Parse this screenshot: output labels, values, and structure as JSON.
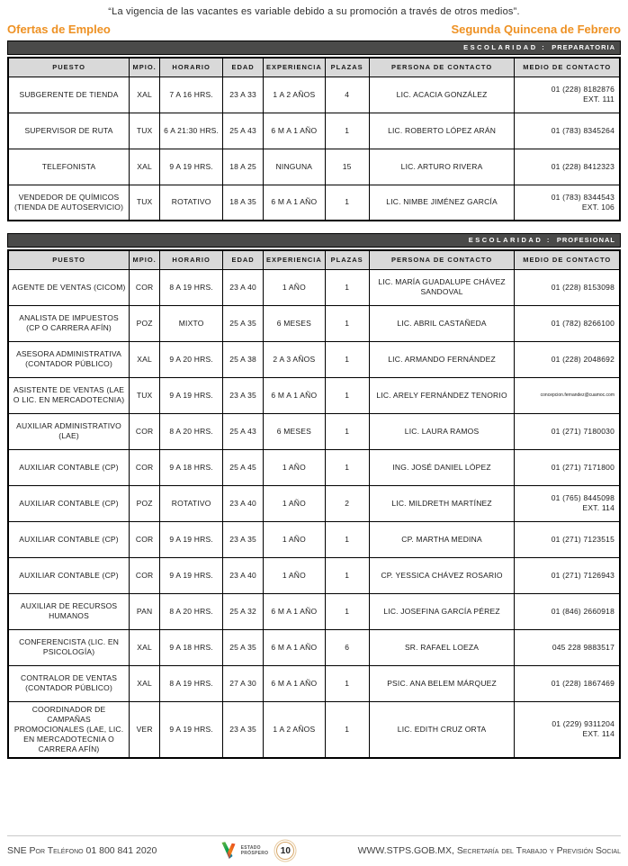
{
  "page": {
    "quote": "“La vigencia de las vacantes es variable debido a su promoción a través de otros medios”.",
    "title_left": "Ofertas de Empleo",
    "title_right": "Segunda Quincena de Febrero"
  },
  "colors": {
    "accent_orange": "#EE9123",
    "bar_dark": "#4A4A49",
    "header_gray": "#D9D9D9"
  },
  "columns": [
    "PUESTO",
    "MPIO.",
    "HORARIO",
    "EDAD",
    "EXPERIENCIA",
    "PLAZAS",
    "PERSONA DE CONTACTO",
    "MEDIO DE CONTACTO"
  ],
  "tables": [
    {
      "schooling_label": "ESCOLARIDAD :",
      "schooling_value": "PREPARATORIA",
      "rows": [
        [
          "SUBGERENTE DE TIENDA",
          "XAL",
          "7 A 16 HRS.",
          "23 A 33",
          "1 A 2 AÑOS",
          "4",
          "LIC. ACACIA GONZÁLEZ",
          "01 (228) 8182876\nEXT. 111"
        ],
        [
          "SUPERVISOR DE RUTA",
          "TUX",
          "6 A 21:30 HRS.",
          "25 A 43",
          "6 M A 1 AÑO",
          "1",
          "LIC. ROBERTO LÓPEZ ARÁN",
          "01 (783) 8345264"
        ],
        [
          "TELEFONISTA",
          "XAL",
          "9 A 19 HRS.",
          "18 A 25",
          "NINGUNA",
          "15",
          "LIC. ARTURO RIVERA",
          "01 (228) 8412323"
        ],
        [
          "VENDEDOR DE QUÍMICOS (TIENDA DE AUTOSERVICIO)",
          "TUX",
          "ROTATIVO",
          "18 A 35",
          "6 M A 1 AÑO",
          "1",
          "LIC. NIMBE JIMÉNEZ GARCÍA",
          "01 (783) 8344543\nEXT. 106"
        ]
      ]
    },
    {
      "schooling_label": "ESCOLARIDAD :",
      "schooling_value": "PROFESIONAL",
      "rows": [
        [
          "AGENTE DE VENTAS (CICOM)",
          "COR",
          "8 A 19 HRS.",
          "23 A 40",
          "1 AÑO",
          "1",
          "LIC. MARÍA GUADALUPE CHÁVEZ SANDOVAL",
          "01 (228) 8153098"
        ],
        [
          "ANALISTA DE IMPUESTOS (CP O CARRERA AFÍN)",
          "POZ",
          "MIXTO",
          "25 A 35",
          "6 MESES",
          "1",
          "LIC. ABRIL CASTAÑEDA",
          "01 (782) 8266100"
        ],
        [
          "ASESORA ADMINISTRATIVA (CONTADOR PÚBLICO)",
          "XAL",
          "9 A 20 HRS.",
          "25 A 38",
          "2 A 3 AÑOS",
          "1",
          "LIC. ARMANDO FERNÁNDEZ",
          "01 (228) 2048692"
        ],
        [
          "ASISTENTE DE VENTAS (LAE O LIC. EN MERCADOTECNIA)",
          "TUX",
          "9 A 19 HRS.",
          "23 A 35",
          "6 M A 1 AÑO",
          "1",
          "LIC. ARELY FERNÁNDEZ TENORIO",
          "concepcion.fernandez@cuamoc.com"
        ],
        [
          "AUXILIAR ADMINISTRATIVO (LAE)",
          "COR",
          "8 A 20 HRS.",
          "25 A 43",
          "6 MESES",
          "1",
          "LIC. LAURA RAMOS",
          "01 (271) 7180030"
        ],
        [
          "AUXILIAR CONTABLE  (CP)",
          "COR",
          "9 A 18 HRS.",
          "25 A 45",
          "1 AÑO",
          "1",
          "ING. JOSÉ DANIEL LÓPEZ",
          "01 (271) 7171800"
        ],
        [
          "AUXILIAR CONTABLE (CP)",
          "POZ",
          "ROTATIVO",
          "23 A 40",
          "1 AÑO",
          "2",
          "LIC. MILDRETH MARTÍNEZ",
          "01 (765) 8445098\nEXT. 114"
        ],
        [
          "AUXILIAR CONTABLE (CP)",
          "COR",
          "9 A 19 HRS.",
          "23 A 35",
          "1 AÑO",
          "1",
          "CP. MARTHA MEDINA",
          "01 (271) 7123515"
        ],
        [
          "AUXILIAR CONTABLE (CP)",
          "COR",
          "9 A 19 HRS.",
          "23 A 40",
          "1 AÑO",
          "1",
          "CP. YESSICA CHÁVEZ ROSARIO",
          "01 (271) 7126943"
        ],
        [
          "AUXILIAR DE RECURSOS HUMANOS",
          "PAN",
          "8 A 20 HRS.",
          "25 A 32",
          "6 M A 1  AÑO",
          "1",
          "LIC. JOSEFINA GARCÍA PÉREZ",
          "01 (846) 2660918"
        ],
        [
          "CONFERENCISTA (LIC. EN PSICOLOGÍA)",
          "XAL",
          "9 A 18 HRS.",
          "25 A 35",
          "6 M A 1 AÑO",
          "6",
          "SR. RAFAEL LOEZA",
          "045 228 9883517"
        ],
        [
          "CONTRALOR DE VENTAS (CONTADOR PÚBLICO)",
          "XAL",
          "8 A 19 HRS.",
          "27 A 30",
          "6 M A 1 AÑO",
          "1",
          "PSIC. ANA BELEM MÁRQUEZ",
          "01 (228) 1867469"
        ],
        [
          "COORDINADOR DE CAMPAÑAS PROMOCIONALES (LAE, LIC. EN MERCADOTECNIA O CARRERA AFÍN)",
          "VER",
          "9 A 19 HRS.",
          "23 A 35",
          "1 A 2 AÑOS",
          "1",
          "LIC. EDITH CRUZ ORTA",
          "01 (229) 9311204\nEXT. 114"
        ]
      ]
    }
  ],
  "footer": {
    "left": "SNE Por Teléfono 01 800 841 2020",
    "logo_line1": "ESTADO",
    "logo_line2": "PRÓSPERO",
    "page_number": "10",
    "right": "WWW.STPS.GOB.MX, Secretaría del Trabajo y Previsión Social"
  }
}
